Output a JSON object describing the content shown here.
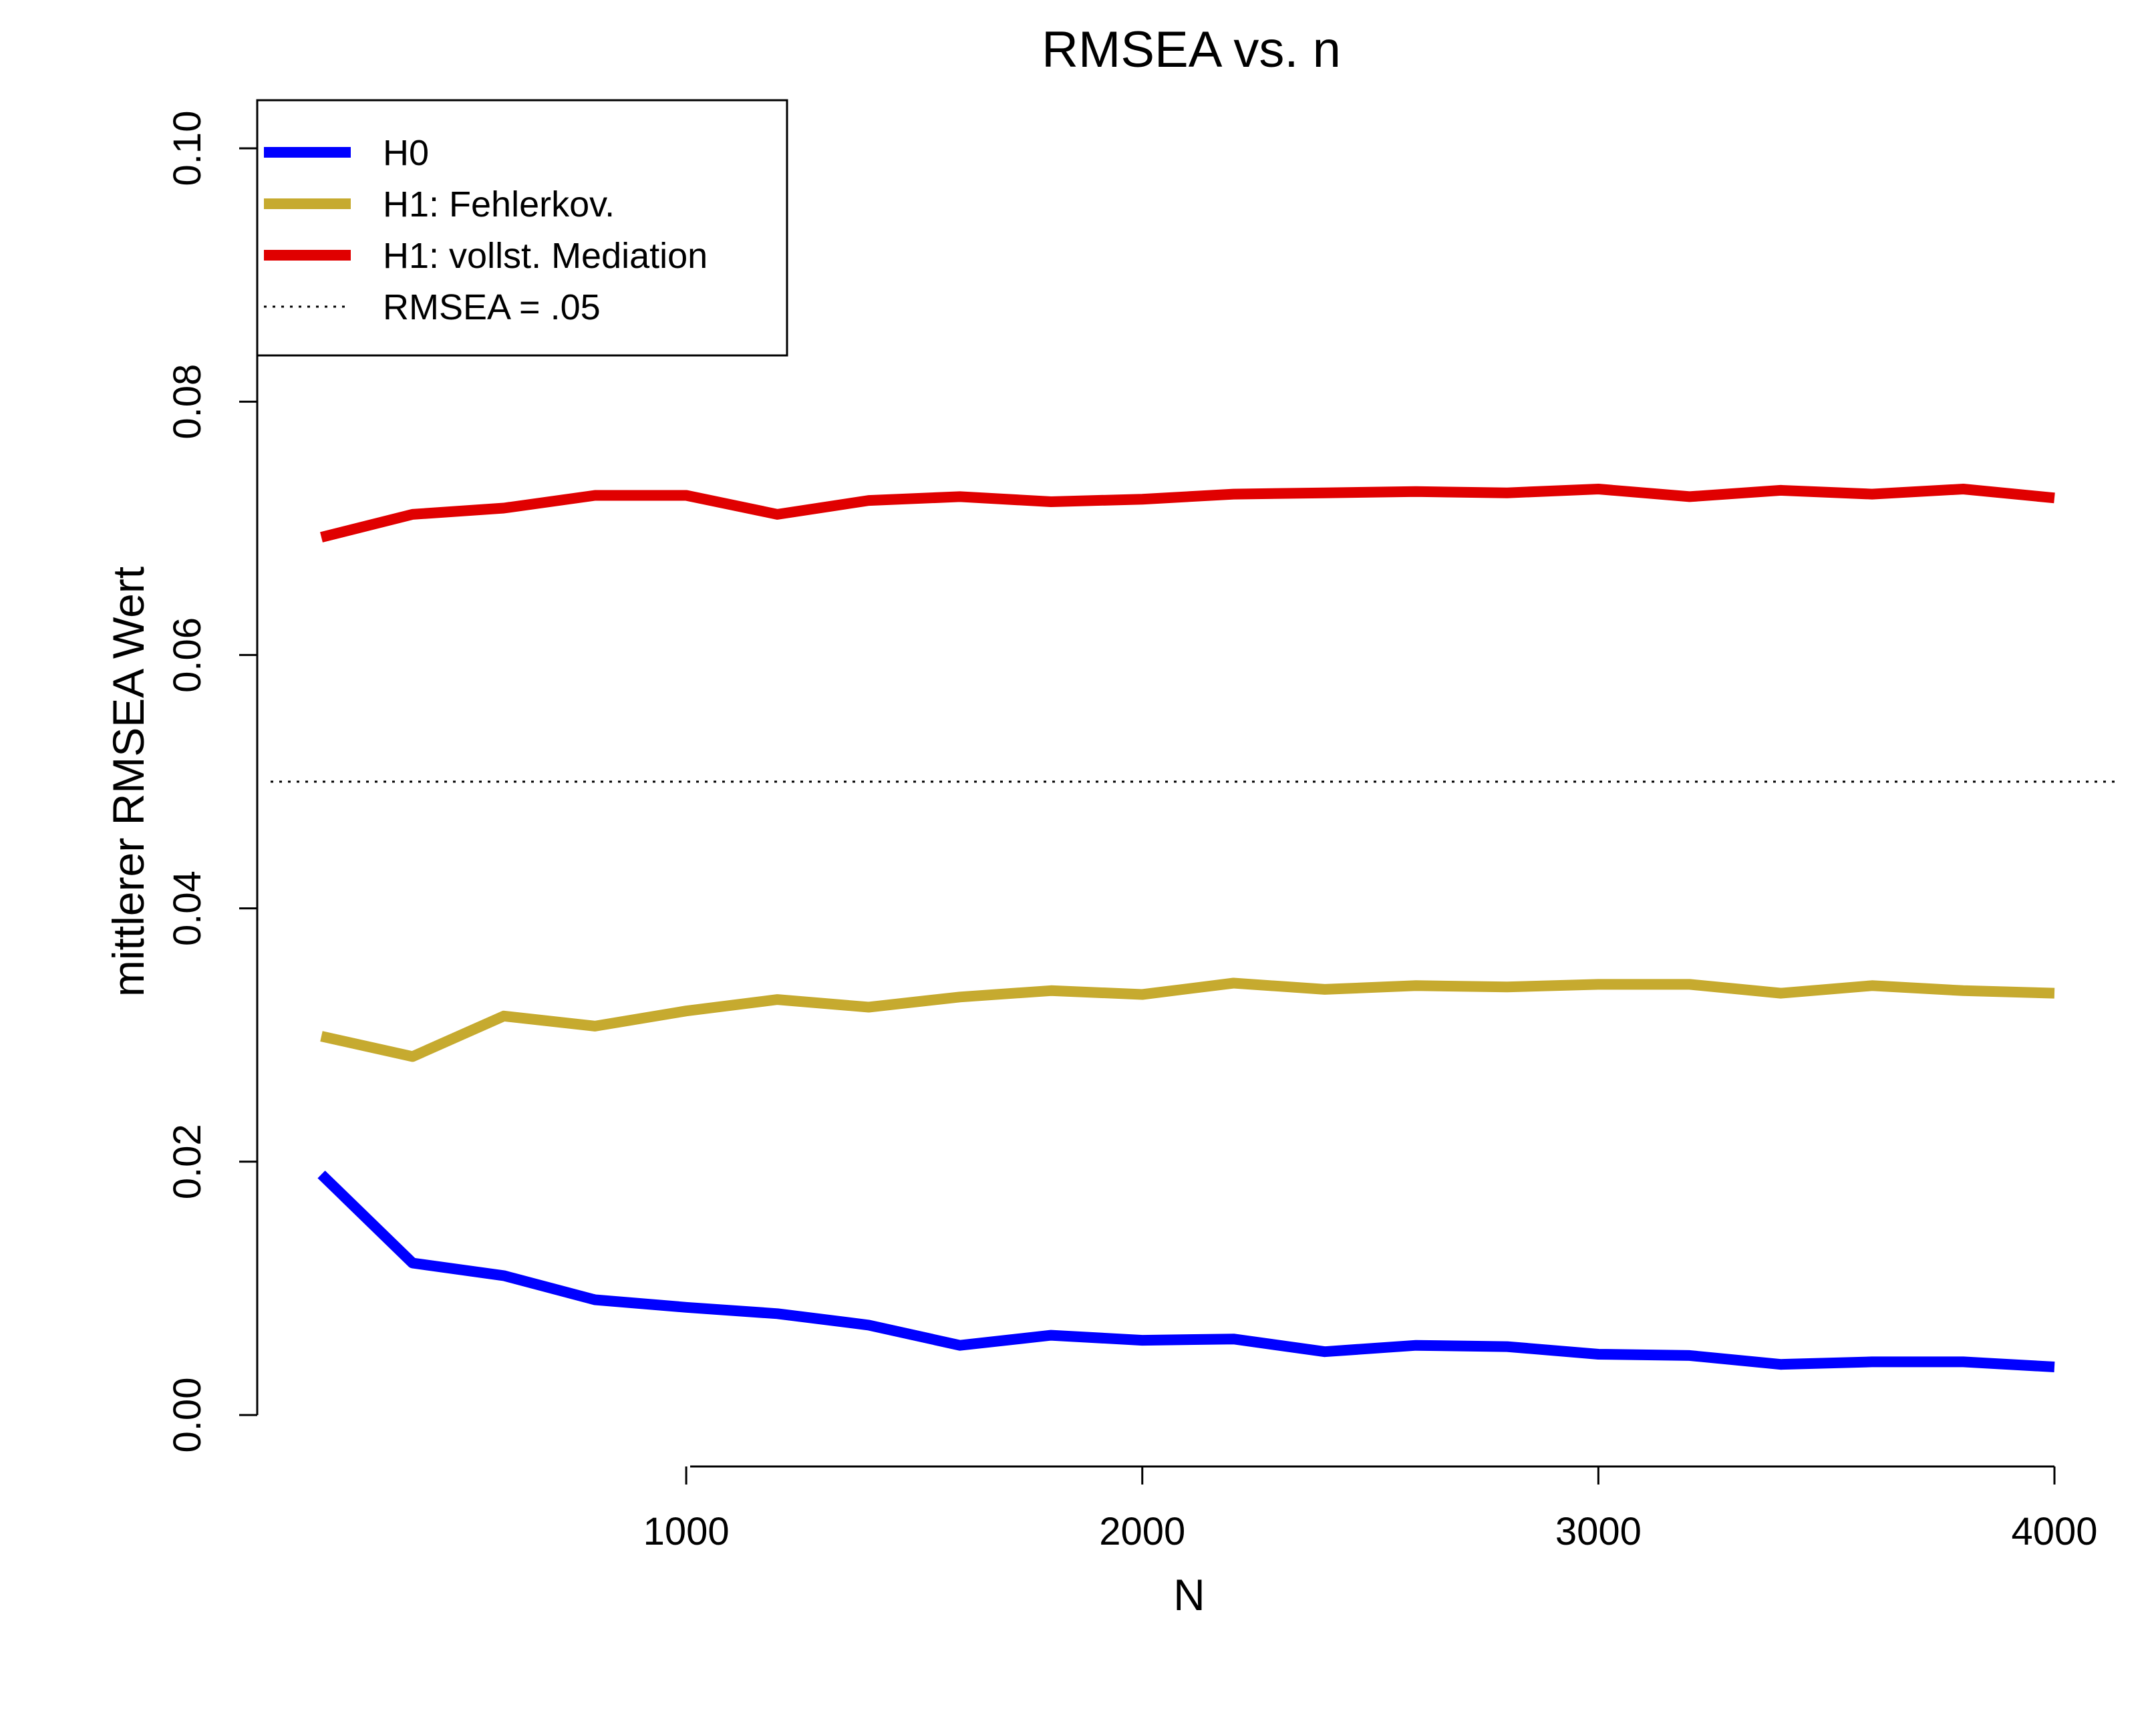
{
  "chart_data": {
    "type": "line",
    "title": "RMSEA vs. n",
    "xlabel": "N",
    "ylabel": "mittlerer RMSEA Wert",
    "xlim": [
      200,
      4000
    ],
    "ylim": [
      0,
      0.1
    ],
    "xticks": [
      1000,
      2000,
      3000,
      4000
    ],
    "xtick_labels": [
      "1000",
      "2000",
      "3000",
      "4000"
    ],
    "yticks": [
      0,
      0.02,
      0.04,
      0.06,
      0.08,
      0.1
    ],
    "ytick_labels": [
      "0.00",
      "0.02",
      "0.04",
      "0.06",
      "0.08",
      "0.10"
    ],
    "grid": false,
    "legend_position": "top-left",
    "x": [
      200,
      400,
      600,
      800,
      1000,
      1200,
      1400,
      1600,
      1800,
      2000,
      2200,
      2400,
      2600,
      2800,
      3000,
      3200,
      3400,
      3600,
      3800,
      4000
    ],
    "series": [
      {
        "name": "H0",
        "color": "#0000ff",
        "values": [
          0.019,
          0.012,
          0.011,
          0.0091,
          0.0085,
          0.008,
          0.0071,
          0.0055,
          0.0063,
          0.0059,
          0.006,
          0.005,
          0.0055,
          0.0054,
          0.0048,
          0.0047,
          0.004,
          0.0042,
          0.0042,
          0.0038
        ]
      },
      {
        "name": "H1: Fehlerkov.",
        "color": "#c6aa2f",
        "values": [
          0.0299,
          0.0283,
          0.0315,
          0.0307,
          0.0319,
          0.0328,
          0.0322,
          0.033,
          0.0335,
          0.0332,
          0.0341,
          0.0336,
          0.0339,
          0.0338,
          0.034,
          0.034,
          0.0333,
          0.0339,
          0.0335,
          0.0333
        ]
      },
      {
        "name": "H1: vollst. Mediation",
        "color": "#e00000",
        "values": [
          0.0693,
          0.0711,
          0.0716,
          0.0726,
          0.0726,
          0.0711,
          0.0722,
          0.0725,
          0.0721,
          0.0723,
          0.0727,
          0.0728,
          0.0729,
          0.0728,
          0.0731,
          0.0725,
          0.073,
          0.0727,
          0.0731,
          0.0724
        ]
      }
    ],
    "reference_lines": [
      {
        "name": "RMSEA = .05",
        "y": 0.05,
        "style": "dotted",
        "color": "#000000"
      }
    ]
  }
}
